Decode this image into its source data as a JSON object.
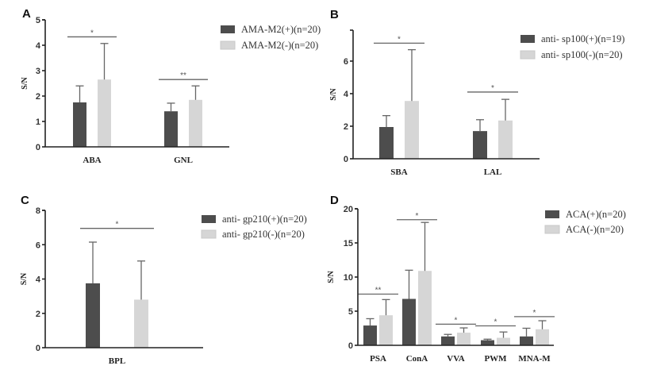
{
  "colors": {
    "positive": "#4d4d4d",
    "negative": "#d6d6d6",
    "axis": "#222222",
    "error": "#666666"
  },
  "chart_data": [
    {
      "panel": "A",
      "type": "bar",
      "ylabel": "S/N",
      "ylim": [
        0,
        5
      ],
      "yticks": [
        0,
        1,
        2,
        3,
        4,
        5
      ],
      "categories": [
        "ABA",
        "GNL"
      ],
      "series": [
        {
          "name": "AMA-M2(+)(n=20)",
          "color": "positive",
          "values": [
            1.75,
            1.4
          ],
          "error_upper": [
            2.4,
            1.72
          ]
        },
        {
          "name": "AMA-M2(-)(n=20)",
          "color": "negative",
          "values": [
            2.65,
            1.85
          ],
          "error_upper": [
            4.07,
            2.4
          ]
        }
      ],
      "significance": [
        {
          "category": "ABA",
          "label": "*",
          "y": 4.33
        },
        {
          "category": "GNL",
          "label": "**",
          "y": 2.65
        }
      ],
      "legend": "top-right"
    },
    {
      "panel": "B",
      "type": "bar",
      "ylabel": "S/N",
      "ylim": [
        0,
        7.9
      ],
      "yticks": [
        0,
        2,
        4,
        6
      ],
      "categories": [
        "SBA",
        "LAL"
      ],
      "series": [
        {
          "name": "anti- sp100(+)(n=19)",
          "color": "positive",
          "values": [
            1.95,
            1.7
          ],
          "error_upper": [
            2.65,
            2.4
          ]
        },
        {
          "name": "anti- sp100(-)(n=20)",
          "color": "negative",
          "values": [
            3.55,
            2.35
          ],
          "error_upper": [
            6.7,
            3.65
          ]
        }
      ],
      "significance": [
        {
          "category": "SBA",
          "label": "*",
          "y": 7.1
        },
        {
          "category": "LAL",
          "label": "*",
          "y": 4.1
        }
      ],
      "legend": "top-right"
    },
    {
      "panel": "C",
      "type": "bar",
      "ylabel": "S/N",
      "ylim": [
        0,
        8
      ],
      "yticks": [
        0,
        2,
        4,
        6,
        8
      ],
      "categories": [
        "BPL"
      ],
      "series": [
        {
          "name": "anti- gp210(+)(n=20)",
          "color": "positive",
          "values": [
            3.75
          ],
          "error_upper": [
            6.15
          ]
        },
        {
          "name": "anti- gp210(-)(n=20)",
          "color": "negative",
          "values": [
            2.8
          ],
          "error_upper": [
            5.05
          ]
        }
      ],
      "significance": [
        {
          "category": "BPL",
          "label": "*",
          "y": 6.95
        }
      ],
      "legend": "top-right"
    },
    {
      "panel": "D",
      "type": "bar",
      "ylabel": "S/N",
      "ylim": [
        0,
        20
      ],
      "yticks": [
        0,
        5,
        10,
        15,
        20
      ],
      "categories": [
        "PSA",
        "ConA",
        "VVA",
        "PWM",
        "MNA-M"
      ],
      "series": [
        {
          "name": "ACA(+)(n=20)",
          "color": "positive",
          "values": [
            2.9,
            6.8,
            1.3,
            0.75,
            1.3
          ],
          "error_upper": [
            3.9,
            11.0,
            1.6,
            0.9,
            2.5
          ]
        },
        {
          "name": "ACA(-)(n=20)",
          "color": "negative",
          "values": [
            4.4,
            10.9,
            1.85,
            1.1,
            2.35
          ],
          "error_upper": [
            6.7,
            18.0,
            2.55,
            1.95,
            3.6
          ]
        }
      ],
      "significance": [
        {
          "category": "PSA",
          "label": "**",
          "y": 7.5
        },
        {
          "category": "ConA",
          "label": "*",
          "y": 18.4
        },
        {
          "category": "VVA",
          "label": "*",
          "y": 3.1
        },
        {
          "category": "PWM",
          "label": "*",
          "y": 2.85
        },
        {
          "category": "MNA-M",
          "label": "*",
          "y": 4.2
        }
      ],
      "legend": "top-right"
    }
  ]
}
